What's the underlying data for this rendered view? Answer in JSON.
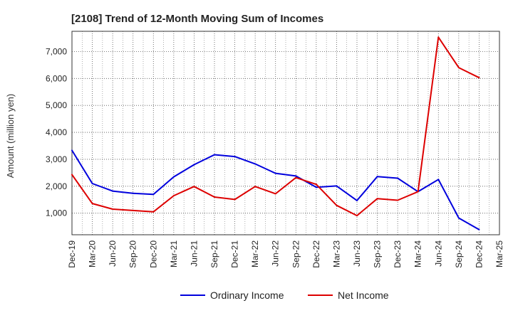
{
  "chart_data": {
    "type": "line",
    "title": "[2108]  Trend of 12-Month Moving Sum of Incomes",
    "xlabel": "",
    "ylabel": "Amount (million yen)",
    "categories": [
      "Dec-19",
      "Mar-20",
      "Jun-20",
      "Sep-20",
      "Dec-20",
      "Mar-21",
      "Jun-21",
      "Sep-21",
      "Dec-21",
      "Mar-22",
      "Jun-22",
      "Sep-22",
      "Dec-22",
      "Mar-23",
      "Jun-23",
      "Sep-23",
      "Dec-23",
      "Mar-24",
      "Jun-24",
      "Sep-24",
      "Dec-24",
      "Mar-25"
    ],
    "ylim": [
      200,
      7750
    ],
    "yticks": [
      1000,
      2000,
      3000,
      4000,
      5000,
      6000,
      7000
    ],
    "ytick_labels": [
      "1,000",
      "2,000",
      "3,000",
      "4,000",
      "5,000",
      "6,000",
      "7,000"
    ],
    "grid": true,
    "legend_position": "bottom-center",
    "series": [
      {
        "name": "Ordinary Income",
        "color": "#0000dd",
        "values": [
          3330,
          2100,
          1820,
          1740,
          1700,
          2350,
          2800,
          3170,
          3100,
          2830,
          2480,
          2380,
          1960,
          2010,
          1470,
          2360,
          2300,
          1800,
          2250,
          820,
          390,
          null
        ]
      },
      {
        "name": "Net Income",
        "color": "#dd0000",
        "values": [
          2430,
          1360,
          1150,
          1100,
          1050,
          1650,
          1990,
          1600,
          1510,
          1990,
          1720,
          2320,
          2070,
          1290,
          910,
          1540,
          1480,
          1800,
          7530,
          6400,
          6030,
          null
        ]
      }
    ]
  }
}
